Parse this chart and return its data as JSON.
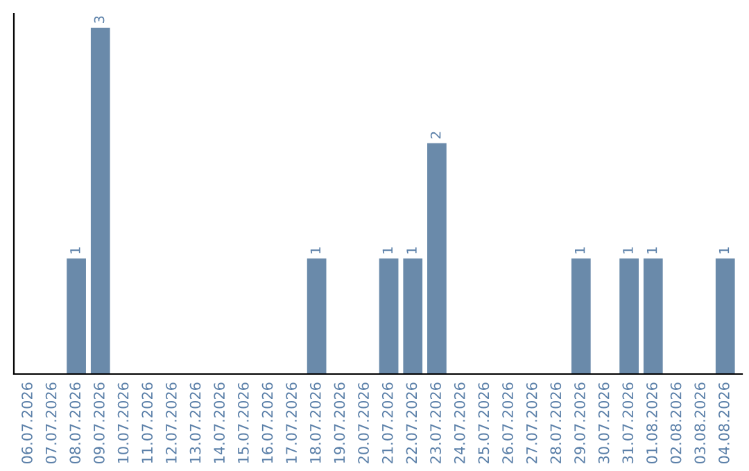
{
  "chart_data": {
    "type": "bar",
    "categories": [
      "06.07.2026",
      "07.07.2026",
      "08.07.2026",
      "09.07.2026",
      "10.07.2026",
      "11.07.2026",
      "12.07.2026",
      "13.07.2026",
      "14.07.2026",
      "15.07.2026",
      "16.07.2026",
      "17.07.2026",
      "18.07.2026",
      "19.07.2026",
      "20.07.2026",
      "21.07.2026",
      "22.07.2026",
      "23.07.2026",
      "24.07.2026",
      "25.07.2026",
      "26.07.2026",
      "27.07.2026",
      "28.07.2026",
      "29.07.2026",
      "30.07.2026",
      "31.07.2026",
      "01.08.2026",
      "02.08.2026",
      "03.08.2026",
      "04.08.2026"
    ],
    "values": [
      0,
      0,
      1,
      3,
      0,
      0,
      0,
      0,
      0,
      0,
      0,
      0,
      1,
      0,
      0,
      1,
      1,
      2,
      0,
      0,
      0,
      0,
      0,
      1,
      0,
      1,
      1,
      0,
      0,
      1
    ],
    "value_labels": [
      null,
      null,
      "1",
      "3",
      null,
      null,
      null,
      null,
      null,
      null,
      null,
      null,
      "1",
      null,
      null,
      "1",
      "1",
      "2",
      null,
      null,
      null,
      null,
      null,
      "1",
      null,
      "1",
      "1",
      null,
      null,
      "1"
    ],
    "color": "#6a8aaa",
    "tick_labels": "x",
    "grid": false,
    "legend": false
  }
}
